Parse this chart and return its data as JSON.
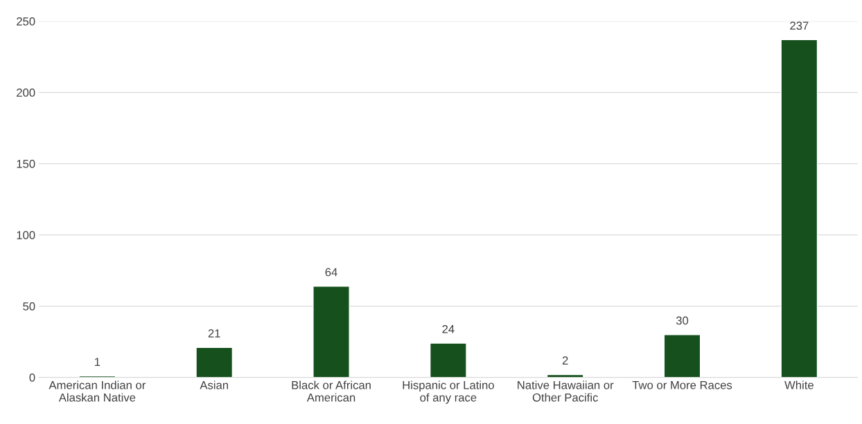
{
  "chart_data": {
    "type": "bar",
    "categories": [
      "American Indian or\nAlaskan Native",
      "Asian",
      "Black or African\nAmerican",
      "Hispanic or Latino\nof any race",
      "Native Hawaiian or\nOther Pacific",
      "Two or More Races",
      "White"
    ],
    "values": [
      1,
      21,
      64,
      24,
      2,
      30,
      237
    ],
    "color": "#15501d",
    "ylim": [
      0,
      250
    ],
    "yticks": [
      0,
      50,
      100,
      150,
      200,
      250
    ],
    "grid": "y",
    "data_labels": true
  }
}
